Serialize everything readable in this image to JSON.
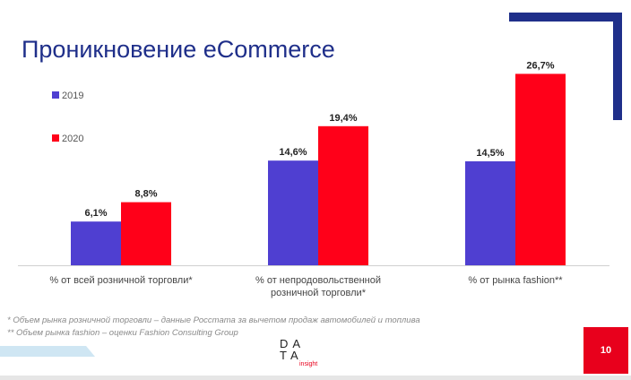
{
  "slide": {
    "title": "Проникновение eCommerce",
    "page_number": "10",
    "footnotes": [
      "* Объем рынка розничной торговли – данные Росстата за вычетом продаж автомобилей и топлива",
      "** Объем рынка fashion – оценки Fashion Consulting Group"
    ],
    "logo": {
      "line1": "DA",
      "line2": "TA",
      "sub": "insight"
    },
    "colors": {
      "title": "#1f2f8a",
      "accent_navy": "#1f2f8a",
      "accent_red": "#e8001c",
      "accent_light_blue": "#cfe6f3"
    }
  },
  "chart_data": {
    "type": "bar",
    "categories": [
      [
        "% от всей розничной торговли*"
      ],
      [
        "% от непродовольственной",
        "розничной торговли*"
      ],
      [
        "% от рынка fashion**"
      ]
    ],
    "series": [
      {
        "name": "2019",
        "color": "#4f3fd1",
        "values": [
          6.1,
          14.6,
          14.5
        ],
        "labels": [
          "6,1%",
          "14,6%",
          "14,5%"
        ]
      },
      {
        "name": "2020",
        "color": "#ff0019",
        "values": [
          8.8,
          19.4,
          26.7
        ],
        "labels": [
          "8,8%",
          "19,4%",
          "26,7%"
        ]
      }
    ],
    "ylim": [
      0,
      30
    ],
    "legend_position": "top-left",
    "grid": false
  }
}
